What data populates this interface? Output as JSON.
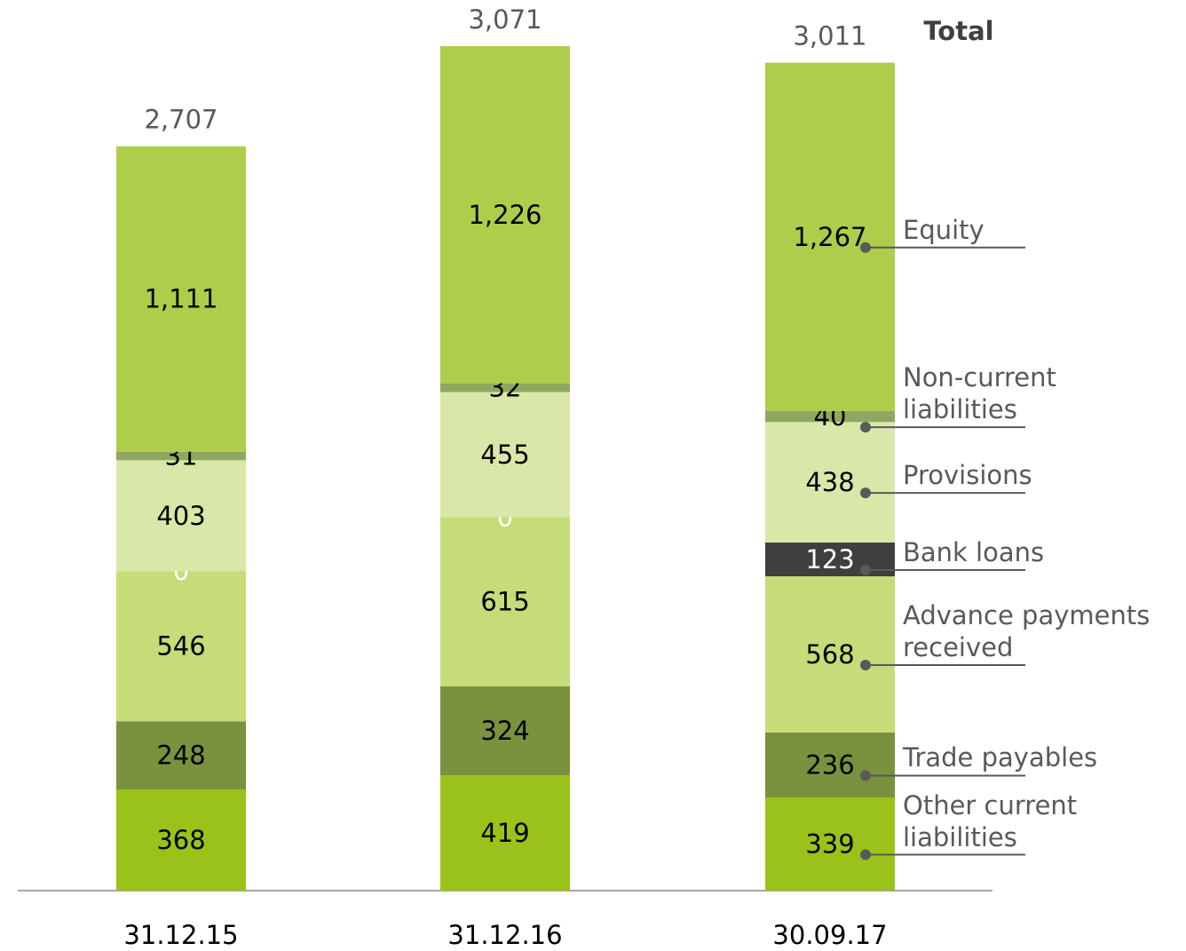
{
  "chart_data": {
    "type": "stacked-bar",
    "categories": [
      "31.12.15",
      "31.12.16",
      "30.09.17"
    ],
    "series": [
      {
        "name": "Other current liabilities",
        "color": "#9bc21a",
        "values": [
          368,
          419,
          339
        ]
      },
      {
        "name": "Trade payables",
        "color": "#7a913d",
        "values": [
          248,
          324,
          236
        ]
      },
      {
        "name": "Advance payments received",
        "color": "#c5dc79",
        "values": [
          546,
          615,
          568
        ]
      },
      {
        "name": "Bank loans",
        "color": "#3f3f3f",
        "values": [
          0,
          0,
          123
        ]
      },
      {
        "name": "Provisions",
        "color": "#d9e8a8",
        "values": [
          403,
          455,
          438
        ]
      },
      {
        "name": "Non-current liabilities",
        "color": "#8fa860",
        "values": [
          31,
          32,
          40
        ]
      },
      {
        "name": "Equity",
        "color": "#aecd4a",
        "values": [
          1111,
          1226,
          1267
        ],
        "value_labels": [
          "1,111",
          "1,226",
          "1,267"
        ]
      }
    ],
    "total_label": "Total",
    "totals": [
      2707,
      3071,
      3011
    ],
    "totals_labels": [
      "2,707",
      "3,071",
      "3,011"
    ]
  }
}
